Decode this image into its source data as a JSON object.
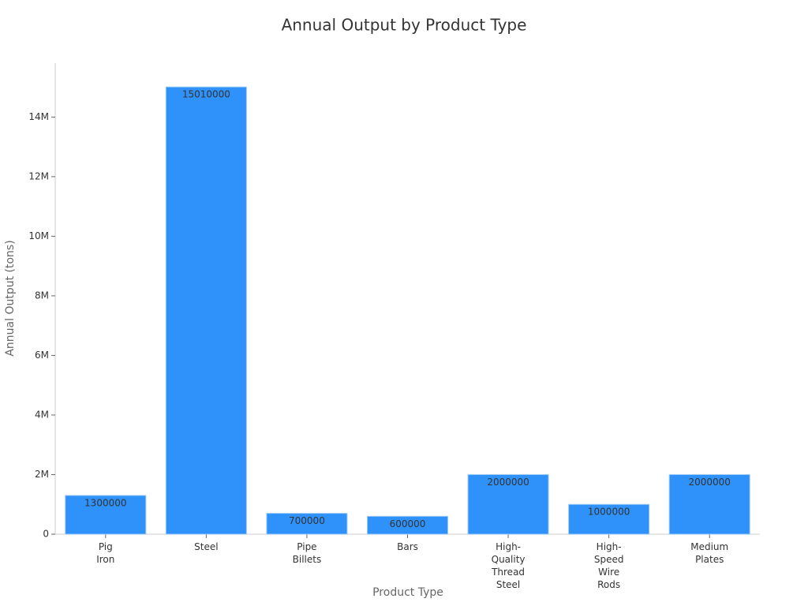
{
  "chart_data": {
    "type": "bar",
    "title": "Annual Output by Product Type",
    "x_label": "Product Type",
    "y_label": "Annual Output (tons)",
    "categories": [
      "Pig Iron",
      "Steel",
      "Pipe Billets",
      "Bars",
      "High-Quality Thread Steel",
      "High-Speed Wire Rods",
      "Medium Plates"
    ],
    "values": [
      1300000,
      15010000,
      700000,
      600000,
      2000000,
      1000000,
      2000000
    ],
    "color": "#2e92fa",
    "ylim": [
      0,
      15810000
    ],
    "yticks": [
      0,
      {
        "value": 2000000,
        "label": "2M"
      },
      {
        "value": 4000000,
        "label": "4M"
      },
      {
        "value": 6000000,
        "label": "6M"
      },
      {
        "value": 8000000,
        "label": "8M"
      },
      {
        "value": 10000000,
        "label": "10M"
      },
      {
        "value": 12000000,
        "label": "12M"
      },
      {
        "value": 14000000,
        "label": "14M"
      }
    ],
    "grid": false
  }
}
